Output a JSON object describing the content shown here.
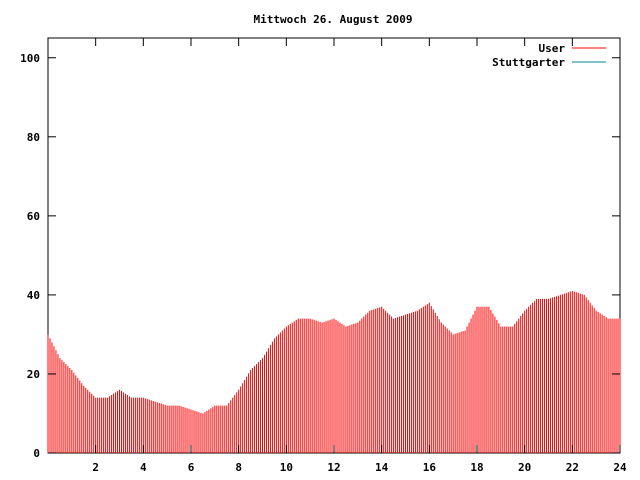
{
  "chart_data": {
    "type": "bar",
    "title": "Mittwoch 26. August 2009",
    "xlabel": "",
    "ylabel": "",
    "xlim": [
      0,
      24
    ],
    "ylim": [
      0,
      105
    ],
    "grid": false,
    "legend_position": "top-right",
    "x_ticks": [
      2,
      4,
      6,
      8,
      10,
      12,
      14,
      16,
      18,
      20,
      22,
      24
    ],
    "x_tick_labels": [
      "2",
      "4",
      "6",
      "8",
      "10",
      "12",
      "14",
      "16",
      "18",
      "20",
      "22",
      "24"
    ],
    "y_ticks": [
      0,
      20,
      40,
      60,
      80,
      100
    ],
    "y_tick_labels": [
      "0",
      "20",
      "40",
      "60",
      "80",
      "100"
    ],
    "series": [
      {
        "name": "User",
        "color": "#ff0000",
        "x": [
          0.0,
          0.5,
          1.0,
          1.5,
          2.0,
          2.5,
          3.0,
          3.5,
          4.0,
          4.5,
          5.0,
          5.5,
          6.0,
          6.5,
          7.0,
          7.5,
          8.0,
          8.5,
          9.0,
          9.5,
          10.0,
          10.5,
          11.0,
          11.5,
          12.0,
          12.5,
          13.0,
          13.5,
          14.0,
          14.5,
          15.0,
          15.5,
          16.0,
          16.5,
          17.0,
          17.5,
          18.0,
          18.5,
          19.0,
          19.5,
          20.0,
          20.5,
          21.0,
          21.5,
          22.0,
          22.5,
          23.0,
          23.5,
          24.0
        ],
        "values": [
          30,
          24,
          21,
          17,
          14,
          14,
          16,
          14,
          14,
          13,
          12,
          12,
          11,
          10,
          12,
          12,
          16,
          21,
          24,
          29,
          32,
          34,
          34,
          33,
          34,
          32,
          33,
          36,
          37,
          34,
          35,
          36,
          38,
          33,
          30,
          31,
          37,
          37,
          32,
          32,
          36,
          39,
          39,
          40,
          41,
          40,
          36,
          34,
          34
        ]
      },
      {
        "name": "Stuttgarter",
        "color": "#008b8b",
        "x": [],
        "values": []
      }
    ]
  }
}
